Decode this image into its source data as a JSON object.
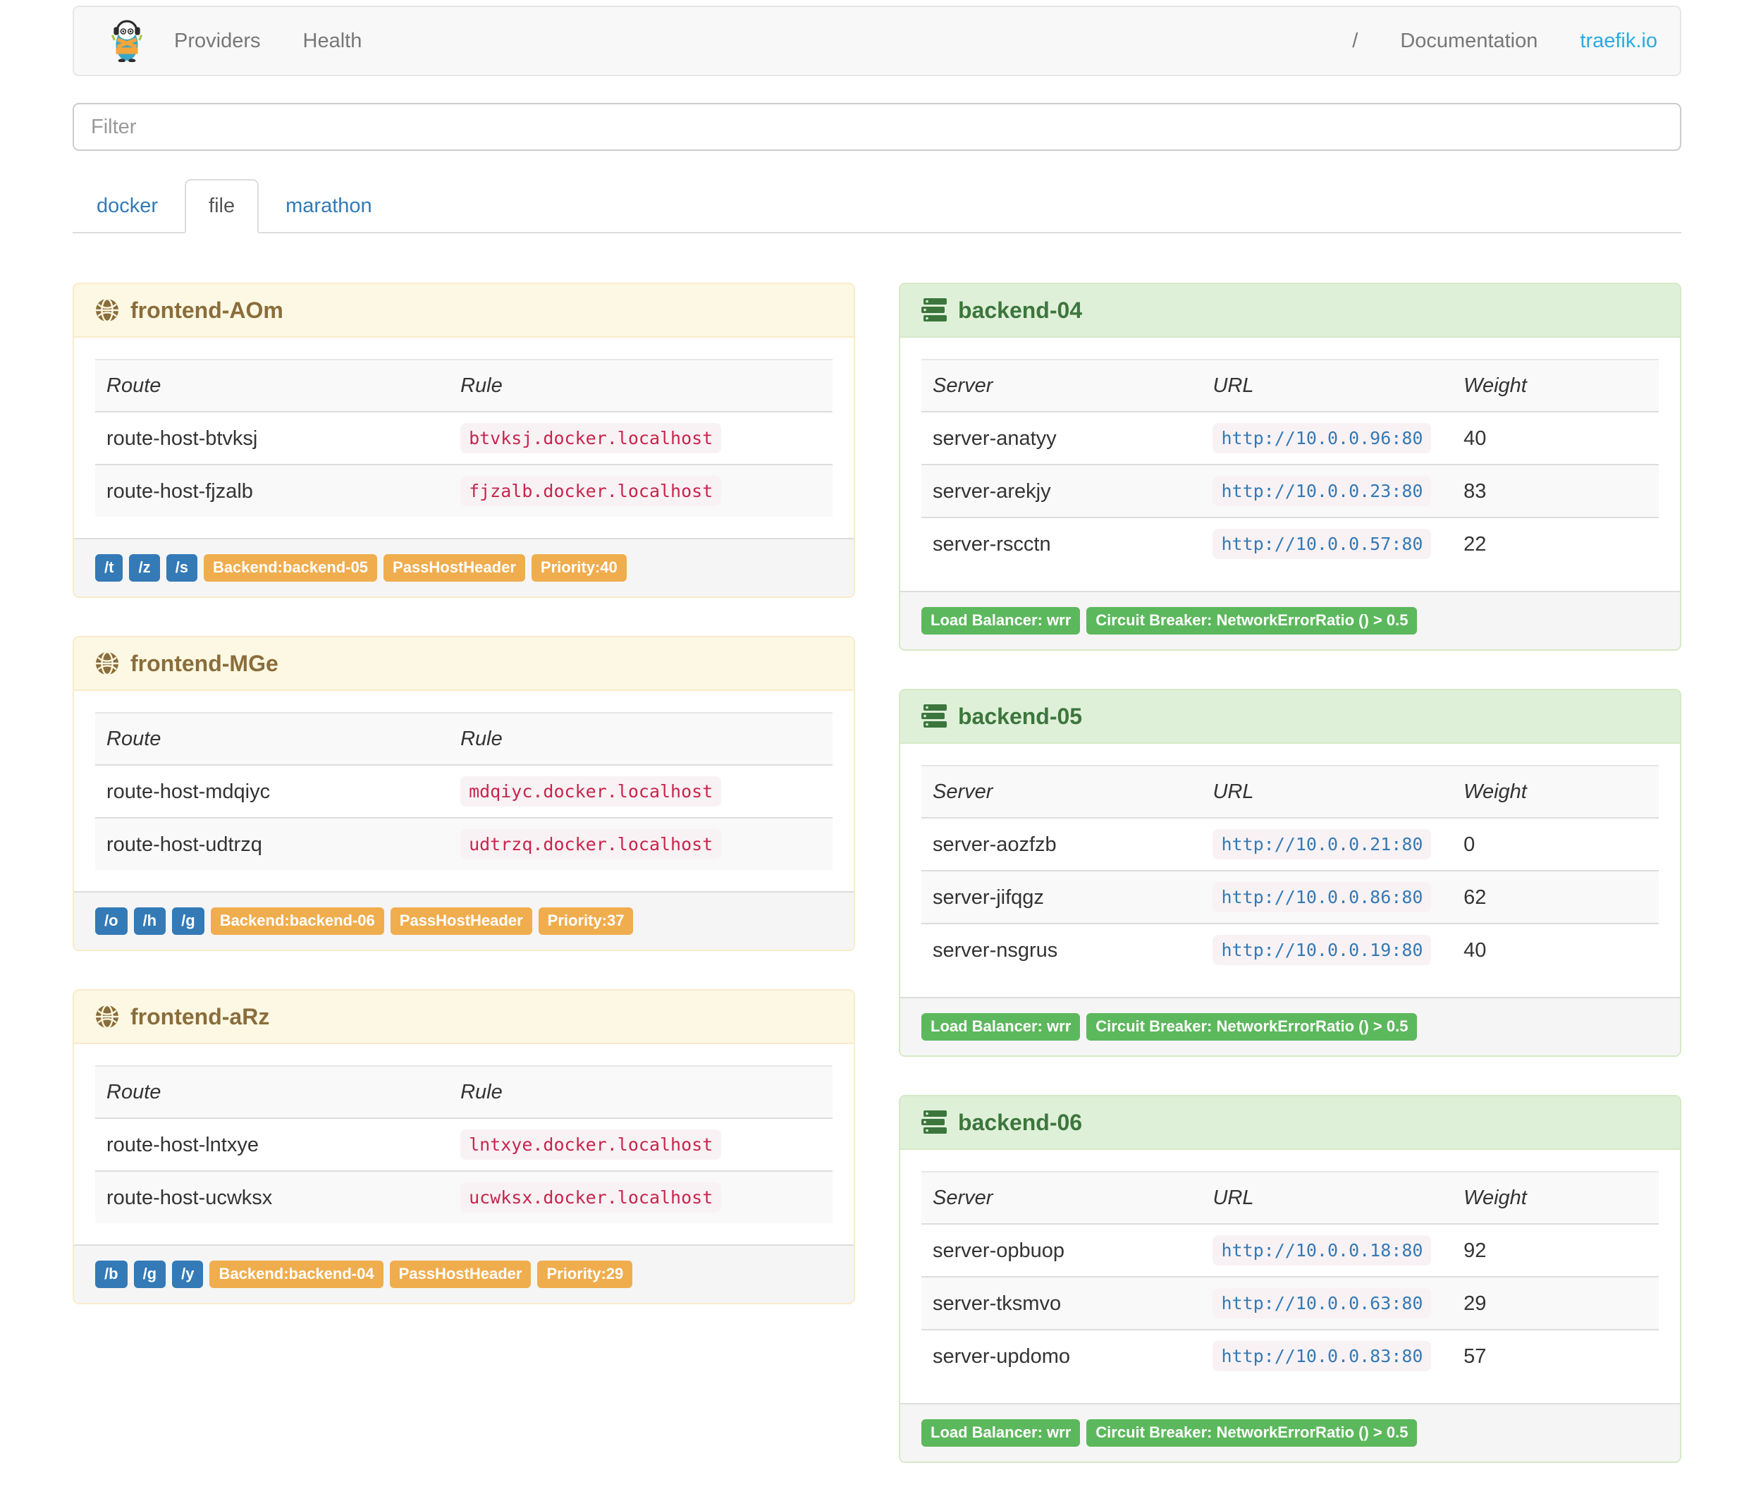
{
  "navbar": {
    "logo_icon": "traefik-gopher-logo",
    "left_items": [
      {
        "label": "Providers"
      },
      {
        "label": "Health"
      }
    ],
    "right_items": [
      {
        "label": "/"
      },
      {
        "label": "Documentation"
      },
      {
        "label": "traefik.io"
      }
    ]
  },
  "filter": {
    "placeholder": "Filter",
    "value": ""
  },
  "tabs": [
    {
      "label": "docker",
      "active": false
    },
    {
      "label": "file",
      "active": true
    },
    {
      "label": "marathon",
      "active": false
    }
  ],
  "frontends": [
    {
      "title": "frontend-AOm",
      "icon": "globe-icon",
      "columns": [
        "Route",
        "Rule"
      ],
      "routes": [
        {
          "route": "route-host-btvksj",
          "rule": "btvksj.docker.localhost"
        },
        {
          "route": "route-host-fjzalb",
          "rule": "fjzalb.docker.localhost"
        }
      ],
      "path_badges": [
        "/t",
        "/z",
        "/s"
      ],
      "config_badges": [
        "Backend:backend-05",
        "PassHostHeader",
        "Priority:40"
      ]
    },
    {
      "title": "frontend-MGe",
      "icon": "globe-icon",
      "columns": [
        "Route",
        "Rule"
      ],
      "routes": [
        {
          "route": "route-host-mdqiyc",
          "rule": "mdqiyc.docker.localhost"
        },
        {
          "route": "route-host-udtrzq",
          "rule": "udtrzq.docker.localhost"
        }
      ],
      "path_badges": [
        "/o",
        "/h",
        "/g"
      ],
      "config_badges": [
        "Backend:backend-06",
        "PassHostHeader",
        "Priority:37"
      ]
    },
    {
      "title": "frontend-aRz",
      "icon": "globe-icon",
      "columns": [
        "Route",
        "Rule"
      ],
      "routes": [
        {
          "route": "route-host-lntxye",
          "rule": "lntxye.docker.localhost"
        },
        {
          "route": "route-host-ucwksx",
          "rule": "ucwksx.docker.localhost"
        }
      ],
      "path_badges": [
        "/b",
        "/g",
        "/y"
      ],
      "config_badges": [
        "Backend:backend-04",
        "PassHostHeader",
        "Priority:29"
      ]
    }
  ],
  "backends": [
    {
      "title": "backend-04",
      "icon": "server-icon",
      "columns": [
        "Server",
        "URL",
        "Weight"
      ],
      "servers": [
        {
          "name": "server-anatyy",
          "url": "http://10.0.0.96:80",
          "weight": "40"
        },
        {
          "name": "server-arekjy",
          "url": "http://10.0.0.23:80",
          "weight": "83"
        },
        {
          "name": "server-rscctn",
          "url": "http://10.0.0.57:80",
          "weight": "22"
        }
      ],
      "badges": [
        "Load Balancer: wrr",
        "Circuit Breaker: NetworkErrorRatio () > 0.5"
      ]
    },
    {
      "title": "backend-05",
      "icon": "server-icon",
      "columns": [
        "Server",
        "URL",
        "Weight"
      ],
      "servers": [
        {
          "name": "server-aozfzb",
          "url": "http://10.0.0.21:80",
          "weight": "0"
        },
        {
          "name": "server-jifqgz",
          "url": "http://10.0.0.86:80",
          "weight": "62"
        },
        {
          "name": "server-nsgrus",
          "url": "http://10.0.0.19:80",
          "weight": "40"
        }
      ],
      "badges": [
        "Load Balancer: wrr",
        "Circuit Breaker: NetworkErrorRatio () > 0.5"
      ]
    },
    {
      "title": "backend-06",
      "icon": "server-icon",
      "columns": [
        "Server",
        "URL",
        "Weight"
      ],
      "servers": [
        {
          "name": "server-opbuop",
          "url": "http://10.0.0.18:80",
          "weight": "92"
        },
        {
          "name": "server-tksmvo",
          "url": "http://10.0.0.63:80",
          "weight": "29"
        },
        {
          "name": "server-updomo",
          "url": "http://10.0.0.83:80",
          "weight": "57"
        }
      ],
      "badges": [
        "Load Balancer: wrr",
        "Circuit Breaker: NetworkErrorRatio () > 0.5"
      ]
    }
  ],
  "colors": {
    "link_blue": "#337ab7",
    "brand_cyan": "#29abe2",
    "label_primary": "#337ab7",
    "label_warning": "#f0ad4e",
    "label_success": "#5cb85c",
    "panel_warning_bg": "#fcf8e3",
    "panel_warning_text": "#8a6d3b",
    "panel_success_bg": "#dff0d8",
    "panel_success_text": "#3c763d",
    "code_text": "#c7254e",
    "code_bg": "#f9f2f4",
    "navbar_bg": "#f8f8f8"
  }
}
